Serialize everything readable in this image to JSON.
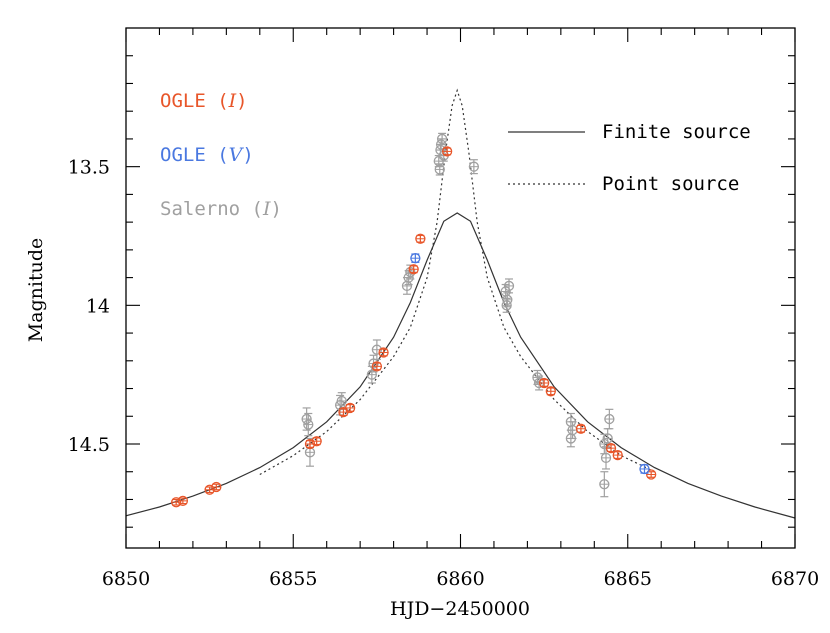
{
  "chart_data": {
    "type": "scatter",
    "title": "",
    "xlabel": "HJD−2450000",
    "ylabel": "Magnitude",
    "xlim": [
      6850,
      6870
    ],
    "ylim": [
      14.875,
      13.0
    ],
    "y_inverted": true,
    "grid": false,
    "x_ticks": [
      6850,
      6855,
      6860,
      6865,
      6870
    ],
    "x_tick_labels": [
      "6850",
      "6855",
      "6860",
      "6865",
      "6870"
    ],
    "y_ticks": [
      13.5,
      14.0,
      14.5
    ],
    "y_tick_labels": [
      "13.5",
      "14",
      "14.5"
    ],
    "legend_points": {
      "placement": "top-left",
      "entries": [
        {
          "name": "OGLE",
          "filter": "I",
          "color": "#e8562a"
        },
        {
          "name": "OGLE",
          "filter": "V",
          "color": "#4a78e0"
        },
        {
          "name": "Salerno",
          "filter": "I",
          "color": "#a0a0a0"
        }
      ]
    },
    "legend_lines": {
      "placement": "top-right",
      "entries": [
        {
          "name": "Finite source",
          "style": "solid"
        },
        {
          "name": "Point source",
          "style": "dotted"
        }
      ]
    },
    "model": {
      "t0": 6859.9,
      "finite_source": [
        [
          6850.0,
          14.759
        ],
        [
          6851.0,
          14.727
        ],
        [
          6852.0,
          14.688
        ],
        [
          6853.0,
          14.642
        ],
        [
          6854.0,
          14.585
        ],
        [
          6855.0,
          14.513
        ],
        [
          6856.0,
          14.42
        ],
        [
          6857.0,
          14.294
        ],
        [
          6858.0,
          14.115
        ],
        [
          6858.5,
          13.99
        ],
        [
          6859.0,
          13.837
        ],
        [
          6859.5,
          13.697
        ],
        [
          6859.9,
          13.667
        ],
        [
          6860.3,
          13.697
        ],
        [
          6860.8,
          13.837
        ],
        [
          6861.3,
          13.99
        ],
        [
          6861.8,
          14.115
        ],
        [
          6862.8,
          14.294
        ],
        [
          6863.8,
          14.42
        ],
        [
          6864.8,
          14.513
        ],
        [
          6865.8,
          14.585
        ],
        [
          6866.8,
          14.642
        ],
        [
          6867.8,
          14.688
        ],
        [
          6868.8,
          14.727
        ],
        [
          6870.0,
          14.767
        ]
      ],
      "point_source": [
        [
          6854.0,
          14.61
        ],
        [
          6855.0,
          14.542
        ],
        [
          6856.0,
          14.455
        ],
        [
          6857.0,
          14.34
        ],
        [
          6858.0,
          14.185
        ],
        [
          6858.5,
          14.08
        ],
        [
          6859.0,
          13.9
        ],
        [
          6859.3,
          13.7
        ],
        [
          6859.55,
          13.45
        ],
        [
          6859.75,
          13.28
        ],
        [
          6859.9,
          13.225
        ],
        [
          6860.05,
          13.28
        ],
        [
          6860.25,
          13.45
        ],
        [
          6860.5,
          13.7
        ],
        [
          6860.8,
          13.9
        ],
        [
          6861.3,
          14.08
        ],
        [
          6861.8,
          14.185
        ],
        [
          6862.8,
          14.34
        ],
        [
          6863.8,
          14.455
        ],
        [
          6864.8,
          14.542
        ],
        [
          6865.8,
          14.6
        ]
      ]
    },
    "series": [
      {
        "name": "OGLE",
        "filter": "I",
        "color": "#e8562a",
        "points": [
          {
            "x": 6851.5,
            "y": 14.71,
            "err": 0.01
          },
          {
            "x": 6851.7,
            "y": 14.705,
            "err": 0.01
          },
          {
            "x": 6852.5,
            "y": 14.665,
            "err": 0.01
          },
          {
            "x": 6852.7,
            "y": 14.655,
            "err": 0.01
          },
          {
            "x": 6855.5,
            "y": 14.5,
            "err": 0.012
          },
          {
            "x": 6855.7,
            "y": 14.49,
            "err": 0.012
          },
          {
            "x": 6856.5,
            "y": 14.385,
            "err": 0.012
          },
          {
            "x": 6856.7,
            "y": 14.37,
            "err": 0.012
          },
          {
            "x": 6857.5,
            "y": 14.22,
            "err": 0.012
          },
          {
            "x": 6857.7,
            "y": 14.17,
            "err": 0.012
          },
          {
            "x": 6858.6,
            "y": 13.87,
            "err": 0.012
          },
          {
            "x": 6858.8,
            "y": 13.76,
            "err": 0.012
          },
          {
            "x": 6859.6,
            "y": 13.445,
            "err": 0.012
          },
          {
            "x": 6862.5,
            "y": 14.28,
            "err": 0.012
          },
          {
            "x": 6862.7,
            "y": 14.31,
            "err": 0.012
          },
          {
            "x": 6863.6,
            "y": 14.445,
            "err": 0.012
          },
          {
            "x": 6864.5,
            "y": 14.515,
            "err": 0.012
          },
          {
            "x": 6864.7,
            "y": 14.54,
            "err": 0.012
          },
          {
            "x": 6865.7,
            "y": 14.61,
            "err": 0.01
          }
        ]
      },
      {
        "name": "OGLE",
        "filter": "V",
        "color": "#4a78e0",
        "points": [
          {
            "x": 6858.65,
            "y": 13.83,
            "err": 0.015
          },
          {
            "x": 6865.5,
            "y": 14.59,
            "err": 0.015
          }
        ]
      },
      {
        "name": "Salerno",
        "filter": "I",
        "color": "#a0a0a0",
        "points": [
          {
            "x": 6855.4,
            "y": 14.41,
            "err": 0.04
          },
          {
            "x": 6855.45,
            "y": 14.43,
            "err": 0.04
          },
          {
            "x": 6855.5,
            "y": 14.53,
            "err": 0.05
          },
          {
            "x": 6856.4,
            "y": 14.36,
            "err": 0.035
          },
          {
            "x": 6856.45,
            "y": 14.345,
            "err": 0.03
          },
          {
            "x": 6857.35,
            "y": 14.25,
            "err": 0.03
          },
          {
            "x": 6857.4,
            "y": 14.21,
            "err": 0.03
          },
          {
            "x": 6857.5,
            "y": 14.16,
            "err": 0.035
          },
          {
            "x": 6858.4,
            "y": 13.93,
            "err": 0.03
          },
          {
            "x": 6858.45,
            "y": 13.9,
            "err": 0.025
          },
          {
            "x": 6858.5,
            "y": 13.88,
            "err": 0.025
          },
          {
            "x": 6859.35,
            "y": 13.48,
            "err": 0.02
          },
          {
            "x": 6859.4,
            "y": 13.44,
            "err": 0.02
          },
          {
            "x": 6859.45,
            "y": 13.4,
            "err": 0.02
          },
          {
            "x": 6859.5,
            "y": 13.46,
            "err": 0.02
          },
          {
            "x": 6859.38,
            "y": 13.51,
            "err": 0.02
          },
          {
            "x": 6859.42,
            "y": 13.42,
            "err": 0.02
          },
          {
            "x": 6860.4,
            "y": 13.5,
            "err": 0.025
          },
          {
            "x": 6861.35,
            "y": 13.95,
            "err": 0.025
          },
          {
            "x": 6861.4,
            "y": 13.98,
            "err": 0.025
          },
          {
            "x": 6861.45,
            "y": 13.93,
            "err": 0.025
          },
          {
            "x": 6861.38,
            "y": 14.0,
            "err": 0.025
          },
          {
            "x": 6862.3,
            "y": 14.26,
            "err": 0.025
          },
          {
            "x": 6862.35,
            "y": 14.28,
            "err": 0.025
          },
          {
            "x": 6863.3,
            "y": 14.42,
            "err": 0.03
          },
          {
            "x": 6863.35,
            "y": 14.45,
            "err": 0.03
          },
          {
            "x": 6863.3,
            "y": 14.48,
            "err": 0.03
          },
          {
            "x": 6864.3,
            "y": 14.5,
            "err": 0.035
          },
          {
            "x": 6864.35,
            "y": 14.55,
            "err": 0.04
          },
          {
            "x": 6864.4,
            "y": 14.48,
            "err": 0.035
          },
          {
            "x": 6864.45,
            "y": 14.41,
            "err": 0.035
          },
          {
            "x": 6864.3,
            "y": 14.645,
            "err": 0.045
          }
        ]
      }
    ]
  }
}
